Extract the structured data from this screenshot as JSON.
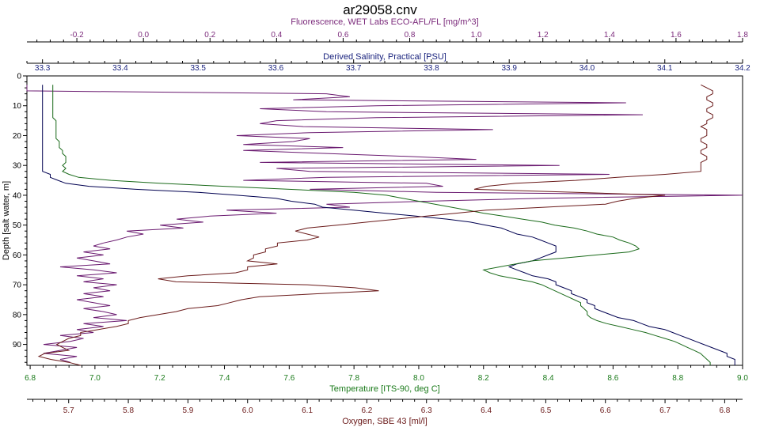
{
  "chart_data": {
    "type": "line",
    "title": "ar29058.cnv",
    "y_axis": {
      "label": "Depth [salt water, m]",
      "range": [
        0,
        97
      ],
      "inverted": true,
      "ticks": [
        "0",
        "10",
        "20",
        "30",
        "40",
        "50",
        "60",
        "70",
        "80",
        "90"
      ]
    },
    "x_axes": [
      {
        "id": "fluor",
        "label": "Fluorescence, WET Labs ECO-AFL/FL [mg/m^3]",
        "position": "top-outer",
        "color": "#7b2a7b",
        "range": [
          -0.35,
          1.8
        ],
        "ticks": [
          "-0.2",
          "0.0",
          "0.2",
          "0.4",
          "0.6",
          "0.8",
          "1.0",
          "1.2",
          "1.4",
          "1.6",
          "1.8"
        ]
      },
      {
        "id": "sal",
        "label": "Derived Salinity, Practical [PSU]",
        "position": "top-inner",
        "color": "#1a237e",
        "range": [
          33.28,
          34.2
        ],
        "ticks": [
          "33.3",
          "33.4",
          "33.5",
          "33.6",
          "33.7",
          "33.8",
          "33.9",
          "34.0",
          "34.1",
          "34.2"
        ]
      },
      {
        "id": "temp",
        "label": "Temperature [ITS-90, deg C]",
        "position": "bottom-inner",
        "color": "#1a7a1a",
        "range": [
          6.79,
          9.0
        ],
        "ticks": [
          "6.8",
          "7.0",
          "7.2",
          "7.4",
          "7.6",
          "7.8",
          "8.0",
          "8.2",
          "8.4",
          "8.6",
          "8.8",
          "9.0"
        ]
      },
      {
        "id": "oxy",
        "label": "Oxygen, SBE 43 [ml/l]",
        "position": "bottom-outer",
        "color": "#6b1a1a",
        "range": [
          5.63,
          6.83
        ],
        "ticks": [
          "5.7",
          "5.8",
          "5.9",
          "6.0",
          "6.1",
          "6.2",
          "6.3",
          "6.4",
          "6.5",
          "6.6",
          "6.7",
          "6.8"
        ]
      }
    ],
    "series": [
      {
        "axis": "fluor",
        "color": "#6a1a70",
        "depth_step": 1,
        "values": [
          -0.35,
          -0.35,
          -0.35,
          0.55,
          0.62,
          0.45,
          1.45,
          0.7,
          0.35,
          0.55,
          1.5,
          0.7,
          0.4,
          0.35,
          0.48,
          1.05,
          0.5,
          0.28,
          0.5,
          0.45,
          0.3,
          0.6,
          0.3,
          0.55,
          0.8,
          1.0,
          0.35,
          1.25,
          0.4,
          0.5,
          1.4,
          0.55,
          0.3,
          0.85,
          0.9,
          0.5,
          0.88,
          1.8,
          1.2,
          0.85,
          0.55,
          0.62,
          0.25,
          0.4,
          0.2,
          0.1,
          0.18,
          0.05,
          0.12,
          -0.05,
          0.0,
          -0.05,
          -0.08,
          -0.12,
          -0.15,
          -0.1,
          -0.18,
          -0.12,
          -0.2,
          -0.15,
          -0.1,
          -0.25,
          -0.15,
          -0.08,
          -0.2,
          -0.12,
          -0.18,
          -0.08,
          -0.15,
          -0.1,
          -0.18,
          -0.12,
          -0.2,
          -0.15,
          -0.1,
          -0.18,
          -0.12,
          -0.08,
          -0.15,
          -0.05,
          -0.18,
          -0.12,
          -0.2,
          -0.15,
          -0.25,
          -0.18,
          -0.22,
          -0.3,
          -0.2,
          -0.25,
          -0.3,
          -0.2,
          -0.25,
          -0.22
        ]
      },
      {
        "axis": "sal",
        "color": "#000050",
        "depth_step": 1,
        "values": [
          33.3,
          33.3,
          33.3,
          33.3,
          33.3,
          33.3,
          33.3,
          33.3,
          33.3,
          33.3,
          33.3,
          33.3,
          33.3,
          33.3,
          33.3,
          33.3,
          33.3,
          33.3,
          33.3,
          33.3,
          33.3,
          33.3,
          33.3,
          33.3,
          33.3,
          33.3,
          33.3,
          33.3,
          33.3,
          33.3,
          33.31,
          33.31,
          33.32,
          33.33,
          33.36,
          33.42,
          33.5,
          33.55,
          33.6,
          33.62,
          33.65,
          33.66,
          33.7,
          33.74,
          33.78,
          33.82,
          33.85,
          33.87,
          33.89,
          33.9,
          33.91,
          33.93,
          33.94,
          33.95,
          33.96,
          33.96,
          33.96,
          33.95,
          33.94,
          33.93,
          33.91,
          33.9,
          33.91,
          33.92,
          33.93,
          33.95,
          33.96,
          33.96,
          33.97,
          33.98,
          33.98,
          33.99,
          34.0,
          34.0,
          34.01,
          34.01,
          34.02,
          34.03,
          34.04,
          34.06,
          34.07,
          34.08,
          34.1,
          34.11,
          34.12,
          34.13,
          34.14,
          34.15,
          34.16,
          34.17,
          34.18,
          34.18,
          34.19,
          34.19,
          34.19
        ]
      },
      {
        "axis": "temp",
        "color": "#1a6a1a",
        "depth_step": 1,
        "values": [
          6.87,
          6.87,
          6.87,
          6.87,
          6.87,
          6.87,
          6.87,
          6.87,
          6.87,
          6.87,
          6.87,
          6.87,
          6.88,
          6.88,
          6.88,
          6.88,
          6.88,
          6.88,
          6.88,
          6.89,
          6.89,
          6.89,
          6.9,
          6.9,
          6.91,
          6.91,
          6.91,
          6.9,
          6.91,
          6.9,
          6.92,
          6.95,
          7.05,
          7.2,
          7.4,
          7.6,
          7.8,
          7.9,
          7.95,
          8.0,
          8.05,
          8.1,
          8.15,
          8.2,
          8.26,
          8.32,
          8.38,
          8.42,
          8.48,
          8.52,
          8.55,
          8.6,
          8.62,
          8.65,
          8.67,
          8.68,
          8.65,
          8.55,
          8.45,
          8.35,
          8.3,
          8.25,
          8.2,
          8.22,
          8.25,
          8.3,
          8.35,
          8.38,
          8.4,
          8.42,
          8.44,
          8.46,
          8.48,
          8.5,
          8.5,
          8.51,
          8.52,
          8.52,
          8.53,
          8.55,
          8.58,
          8.62,
          8.66,
          8.7,
          8.73,
          8.76,
          8.79,
          8.81,
          8.83,
          8.85,
          8.87,
          8.88,
          8.89,
          8.9,
          8.9
        ]
      },
      {
        "axis": "oxy",
        "color": "#6a1a1a",
        "depth_step": 1,
        "values": [
          6.76,
          6.77,
          6.78,
          6.78,
          6.77,
          6.77,
          6.78,
          6.78,
          6.77,
          6.77,
          6.78,
          6.78,
          6.77,
          6.77,
          6.76,
          6.77,
          6.77,
          6.77,
          6.76,
          6.76,
          6.77,
          6.77,
          6.76,
          6.76,
          6.77,
          6.77,
          6.76,
          6.76,
          6.76,
          6.76,
          6.7,
          6.62,
          6.55,
          6.45,
          6.4,
          6.38,
          6.55,
          6.7,
          6.65,
          6.62,
          6.6,
          6.5,
          6.4,
          6.35,
          6.3,
          6.25,
          6.2,
          6.15,
          6.1,
          6.08,
          6.1,
          6.12,
          6.1,
          6.05,
          6.05,
          6.03,
          6.03,
          6.01,
          6.01,
          6.0,
          6.05,
          6.0,
          6.0,
          5.98,
          5.9,
          5.85,
          5.88,
          6.1,
          6.18,
          6.22,
          6.12,
          6.02,
          5.99,
          5.97,
          5.95,
          5.9,
          5.88,
          5.85,
          5.82,
          5.8,
          5.8,
          5.78,
          5.75,
          5.72,
          5.72,
          5.7,
          5.69,
          5.68,
          5.69,
          5.7,
          5.66,
          5.65,
          5.67,
          5.7,
          5.72
        ]
      }
    ]
  }
}
